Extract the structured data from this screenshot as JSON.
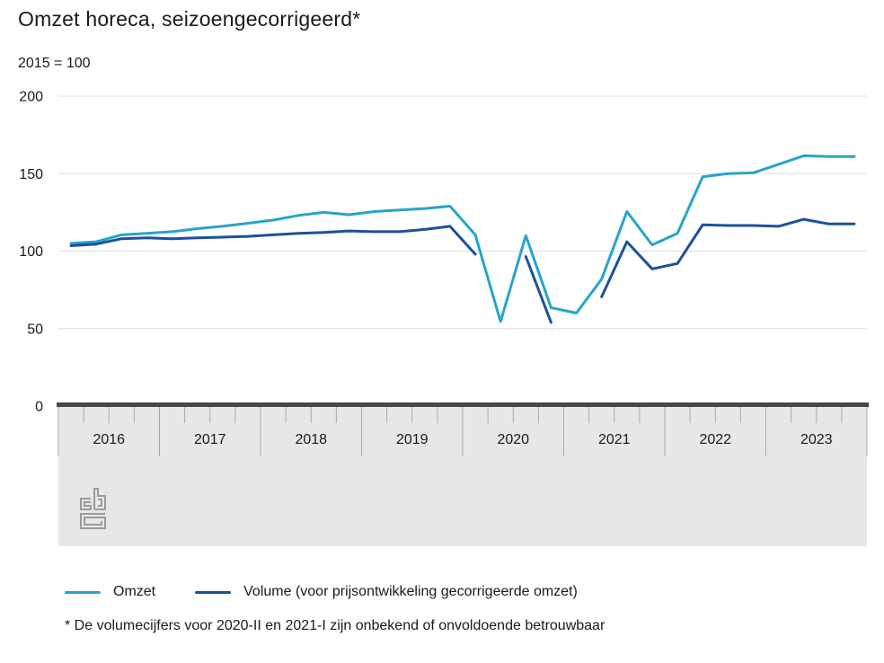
{
  "title": "Omzet horeca, seizoengecorrigeerd*",
  "subtitle": "2015 = 100",
  "footnote": "* De volumecijfers voor 2020-II en 2021-I zijn onbekend of onvoldoende betrouwbaar",
  "legend": {
    "position": "bottom",
    "items": [
      {
        "label": "Omzet",
        "color": "#27a4c9"
      },
      {
        "label": "Volume (voor prijsontwikkeling gecorrigeerde omzet)",
        "color": "#1c509e"
      }
    ]
  },
  "logo": "cbs-logo",
  "colors": {
    "omzet": "#27a4c9",
    "volume": "#1c509e",
    "gridline": "#dcdcdc",
    "axis_bar": "#474747",
    "axis_band": "#e7e7e7",
    "tick": "#a8a8a8"
  },
  "chart_data": {
    "type": "line",
    "title": "Omzet horeca, seizoengecorrigeerd*",
    "unit_label": "2015 = 100",
    "ylabel": "index (2015 = 100)",
    "ylim": [
      0,
      200
    ],
    "yticks": [
      0,
      50,
      100,
      150,
      200
    ],
    "grid": true,
    "legend_position": "bottom",
    "x_year_labels": [
      "2016",
      "2017",
      "2018",
      "2019",
      "2020",
      "2021",
      "2022",
      "2023"
    ],
    "points_per_year": 4,
    "quarters": [
      "2016-I",
      "2016-II",
      "2016-III",
      "2016-IV",
      "2017-I",
      "2017-II",
      "2017-III",
      "2017-IV",
      "2018-I",
      "2018-II",
      "2018-III",
      "2018-IV",
      "2019-I",
      "2019-II",
      "2019-III",
      "2019-IV",
      "2020-I",
      "2020-II",
      "2020-III",
      "2020-IV",
      "2021-I",
      "2021-II",
      "2021-III",
      "2021-IV",
      "2022-I",
      "2022-II",
      "2022-III",
      "2022-IV",
      "2023-I",
      "2023-II",
      "2023-III",
      "2023-IV"
    ],
    "series": [
      {
        "name": "Omzet",
        "color": "#27a4c9",
        "values": [
          105,
          106,
          110.5,
          111.5,
          112.5,
          114.5,
          116,
          118,
          120,
          123,
          125,
          123.5,
          125.5,
          126.5,
          127.5,
          129,
          110.5,
          54.5,
          110,
          63.5,
          60,
          82,
          125.5,
          104,
          111.5,
          148,
          150,
          150.5,
          156,
          161.5,
          161,
          161
        ]
      },
      {
        "name": "Volume (voor prijsontwikkeling gecorrigeerde omzet)",
        "color": "#1c509e",
        "values": [
          103.5,
          104.5,
          108,
          108.5,
          108,
          108.5,
          109,
          109.5,
          110.5,
          111.5,
          112,
          113,
          112.5,
          112.5,
          114,
          116,
          98,
          null,
          96.5,
          54,
          null,
          70.5,
          106,
          88.5,
          92,
          117,
          116.5,
          116.5,
          116,
          120.5,
          117.5,
          117.5
        ]
      }
    ],
    "missing_values_note": "* De volumecijfers voor 2020-II en 2021-I zijn onbekend of onvoldoende betrouwbaar"
  }
}
